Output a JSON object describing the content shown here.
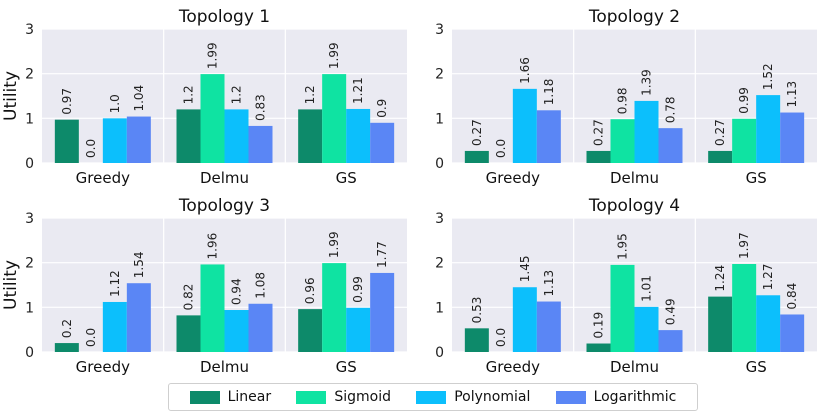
{
  "colors": {
    "Linear": "#0d8a6a",
    "Sigmoid": "#0fe3a2",
    "Polynomial": "#0cbffc",
    "Logarithmic": "#5a86f5",
    "plot_bg": "#eaeaf2",
    "grid": "#ffffff"
  },
  "legend": {
    "items": [
      "Linear",
      "Sigmoid",
      "Polynomial",
      "Logarithmic"
    ]
  },
  "chart_data": [
    {
      "type": "bar",
      "title": "Topology 1",
      "ylabel": "Utility",
      "xlabel": "",
      "ylim": [
        0,
        3
      ],
      "yticks": [
        "0",
        "1",
        "2",
        "3"
      ],
      "categories": [
        "Greedy",
        "Delmu",
        "GS"
      ],
      "series": [
        {
          "name": "Linear",
          "values": [
            0.97,
            1.2,
            1.2
          ],
          "labels": [
            "0.97",
            "1.2",
            "1.2"
          ]
        },
        {
          "name": "Sigmoid",
          "values": [
            0.0,
            1.99,
            1.99
          ],
          "labels": [
            "0.0",
            "1.99",
            "1.99"
          ]
        },
        {
          "name": "Polynomial",
          "values": [
            1.0,
            1.2,
            1.21
          ],
          "labels": [
            "1.0",
            "1.2",
            "1.21"
          ]
        },
        {
          "name": "Logarithmic",
          "values": [
            1.04,
            0.83,
            0.9
          ],
          "labels": [
            "1.04",
            "0.83",
            "0.9"
          ]
        }
      ]
    },
    {
      "type": "bar",
      "title": "Topology 2",
      "ylabel": "",
      "xlabel": "",
      "ylim": [
        0,
        3
      ],
      "yticks": [
        "0",
        "1",
        "2",
        "3"
      ],
      "categories": [
        "Greedy",
        "Delmu",
        "GS"
      ],
      "series": [
        {
          "name": "Linear",
          "values": [
            0.27,
            0.27,
            0.27
          ],
          "labels": [
            "0.27",
            "0.27",
            "0.27"
          ]
        },
        {
          "name": "Sigmoid",
          "values": [
            0.0,
            0.98,
            0.99
          ],
          "labels": [
            "0.0",
            "0.98",
            "0.99"
          ]
        },
        {
          "name": "Polynomial",
          "values": [
            1.66,
            1.39,
            1.52
          ],
          "labels": [
            "1.66",
            "1.39",
            "1.52"
          ]
        },
        {
          "name": "Logarithmic",
          "values": [
            1.18,
            0.78,
            1.13
          ],
          "labels": [
            "1.18",
            "0.78",
            "1.13"
          ]
        }
      ]
    },
    {
      "type": "bar",
      "title": "Topology 3",
      "ylabel": "Utility",
      "xlabel": "",
      "ylim": [
        0,
        3
      ],
      "yticks": [
        "0",
        "1",
        "2",
        "3"
      ],
      "categories": [
        "Greedy",
        "Delmu",
        "GS"
      ],
      "series": [
        {
          "name": "Linear",
          "values": [
            0.2,
            0.82,
            0.96
          ],
          "labels": [
            "0.2",
            "0.82",
            "0.96"
          ]
        },
        {
          "name": "Sigmoid",
          "values": [
            0.0,
            1.96,
            1.99
          ],
          "labels": [
            "0.0",
            "1.96",
            "1.99"
          ]
        },
        {
          "name": "Polynomial",
          "values": [
            1.12,
            0.94,
            0.99
          ],
          "labels": [
            "1.12",
            "0.94",
            "0.99"
          ]
        },
        {
          "name": "Logarithmic",
          "values": [
            1.54,
            1.08,
            1.77
          ],
          "labels": [
            "1.54",
            "1.08",
            "1.77"
          ]
        }
      ]
    },
    {
      "type": "bar",
      "title": "Topology 4",
      "ylabel": "",
      "xlabel": "",
      "ylim": [
        0,
        3
      ],
      "yticks": [
        "0",
        "1",
        "2",
        "3"
      ],
      "categories": [
        "Greedy",
        "Delmu",
        "GS"
      ],
      "series": [
        {
          "name": "Linear",
          "values": [
            0.53,
            0.19,
            1.24
          ],
          "labels": [
            "0.53",
            "0.19",
            "1.24"
          ]
        },
        {
          "name": "Sigmoid",
          "values": [
            0.0,
            1.95,
            1.97
          ],
          "labels": [
            "0.0",
            "1.95",
            "1.97"
          ]
        },
        {
          "name": "Polynomial",
          "values": [
            1.45,
            1.01,
            1.27
          ],
          "labels": [
            "1.45",
            "1.01",
            "1.27"
          ]
        },
        {
          "name": "Logarithmic",
          "values": [
            1.13,
            0.49,
            0.84
          ],
          "labels": [
            "1.13",
            "0.49",
            "0.84"
          ]
        }
      ]
    }
  ]
}
